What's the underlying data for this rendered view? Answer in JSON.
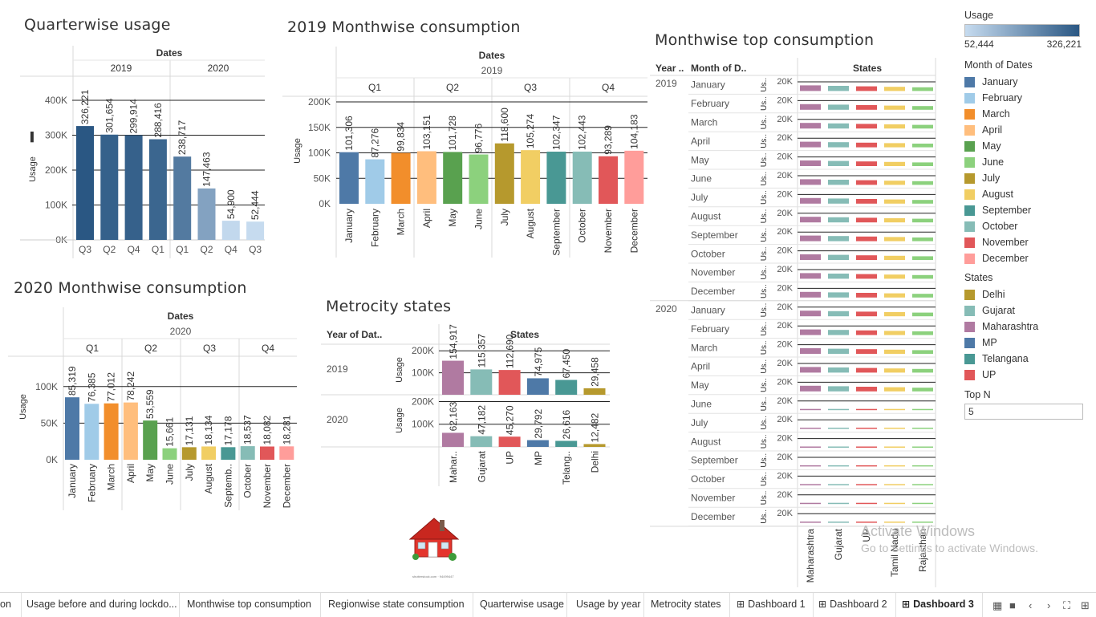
{
  "titles": {
    "quarter": "Quarterwise usage",
    "m2019": "2019 Monthwise consumption",
    "m2020": "2020 Monthwise consumption",
    "metro": "Metrocity states",
    "top": "Monthwise top consumption"
  },
  "colors": {
    "months": [
      "#4e79a7",
      "#a0cbe8",
      "#f28e2b",
      "#ffbe7d",
      "#59a14f",
      "#8cd17d",
      "#b6992d",
      "#f1ce63",
      "#499894",
      "#86bcb6",
      "#e15759",
      "#ff9d9a"
    ],
    "states": {
      "Delhi": "#b6992d",
      "Gujarat": "#86bcb6",
      "Maharashtra": "#b07aa1",
      "MP": "#4e79a7",
      "Telangana": "#499894",
      "UP": "#e15759",
      "Tamil Nadu": "#f1ce63",
      "Rajasthan": "#8cd17d"
    }
  },
  "legend": {
    "usage_title": "Usage",
    "usage_min": "52,444",
    "usage_max": "326,221",
    "month_title": "Month of Dates",
    "months": [
      "January",
      "February",
      "March",
      "April",
      "May",
      "June",
      "July",
      "August",
      "September",
      "October",
      "November",
      "December"
    ],
    "state_title": "States",
    "states": [
      "Delhi",
      "Gujarat",
      "Maharashtra",
      "MP",
      "Telangana",
      "UP"
    ],
    "topn_title": "Top N",
    "topn_value": "5"
  },
  "chart_data": [
    {
      "id": "quarterwise-usage",
      "type": "bar",
      "title": "Quarterwise usage",
      "header": "Dates",
      "ylabel": "Usage",
      "ylim": [
        0,
        400000
      ],
      "ticks": [
        "0K",
        "100K",
        "200K",
        "300K",
        "400K"
      ],
      "groups": [
        {
          "name": "2019",
          "categories": [
            "Q3",
            "Q2",
            "Q4",
            "Q1"
          ],
          "values": [
            326221,
            301654,
            299914,
            288416
          ],
          "labels": [
            "326,221",
            "301,654",
            "299,914",
            "288,416"
          ]
        },
        {
          "name": "2020",
          "categories": [
            "Q1",
            "Q2",
            "Q4",
            "Q3"
          ],
          "values": [
            238717,
            147463,
            54900,
            52444
          ],
          "labels": [
            "238,717",
            "147,463",
            "54,900",
            "52,444"
          ]
        }
      ]
    },
    {
      "id": "monthwise-2019",
      "type": "bar",
      "title": "2019 Monthwise consumption",
      "header": "Dates",
      "year": "2019",
      "ylabel": "Usage",
      "ylim": [
        0,
        200000
      ],
      "ticks": [
        "0K",
        "50K",
        "100K",
        "150K",
        "200K"
      ],
      "quarters": [
        "Q1",
        "Q2",
        "Q3",
        "Q4"
      ],
      "categories": [
        "January",
        "February",
        "March",
        "April",
        "May",
        "June",
        "July",
        "August",
        "September",
        "October",
        "November",
        "December"
      ],
      "values": [
        101306,
        87276,
        99834,
        103151,
        101728,
        96776,
        118600,
        105274,
        102347,
        102443,
        93289,
        104183
      ],
      "labels": [
        "101,306",
        "87,276",
        "99,834",
        "103,151",
        "101,728",
        "96,776",
        "118,600",
        "105,274",
        "102,347",
        "102,443",
        "93,289",
        "104,183"
      ]
    },
    {
      "id": "monthwise-2020",
      "type": "bar",
      "title": "2020 Monthwise consumption",
      "header": "Dates",
      "year": "2020",
      "ylabel": "Usage",
      "ylim": [
        0,
        130000
      ],
      "ticks": [
        "0K",
        "50K",
        "100K"
      ],
      "quarters": [
        "Q1",
        "Q2",
        "Q3",
        "Q4"
      ],
      "categories": [
        "January",
        "February",
        "March",
        "April",
        "May",
        "June",
        "July",
        "August",
        "Septemb..",
        "October",
        "November",
        "December"
      ],
      "values": [
        85319,
        76385,
        77012,
        78242,
        53559,
        15661,
        17131,
        18134,
        17178,
        18537,
        18082,
        18281
      ],
      "labels": [
        "85,319",
        "76,385",
        "77,012",
        "78,242",
        "53,559",
        "15,661",
        "17,131",
        "18,134",
        "17,178",
        "18,537",
        "18,082",
        "18,281"
      ]
    },
    {
      "id": "metrocity-states",
      "type": "bar",
      "title": "Metrocity states",
      "row_header": "Year of Dat..",
      "col_header": "States",
      "ylabel": "Usage",
      "ticks": [
        "100K",
        "200K"
      ],
      "rows": [
        {
          "year": "2019",
          "states": [
            "Maharashtra",
            "Gujarat",
            "UP",
            "MP",
            "Telangana",
            "Delhi"
          ],
          "values": [
            154917,
            115357,
            112690,
            74975,
            67450,
            29458
          ],
          "labels": [
            "154,917",
            "115,357",
            "112,690",
            "74,975",
            "67,450",
            "29,458"
          ]
        },
        {
          "year": "2020",
          "states": [
            "Maharashtra",
            "Gujarat",
            "UP",
            "MP",
            "Telangana",
            "Delhi"
          ],
          "values": [
            62163,
            47182,
            45270,
            29792,
            26616,
            12482
          ],
          "labels": [
            "62,163",
            "47,182",
            "45,270",
            "29,792",
            "26,616",
            "12,482"
          ]
        }
      ],
      "x_labels": [
        "Mahar..",
        "Gujarat",
        "UP",
        "MP",
        "Telang..",
        "Delhi"
      ]
    },
    {
      "id": "monthwise-top-consumption",
      "type": "bar",
      "title": "Monthwise top consumption",
      "col_headers": [
        "Year ..",
        "Month of D..",
        "States"
      ],
      "measure_label": "Us..",
      "tick": "20K",
      "states": [
        "Maharashtra",
        "Gujarat",
        "UP",
        "Tamil Nadu",
        "Rajasthan"
      ],
      "years": [
        "2019",
        "2020"
      ],
      "months": [
        "January",
        "February",
        "March",
        "April",
        "May",
        "June",
        "July",
        "August",
        "September",
        "October",
        "November",
        "December"
      ],
      "x_labels": [
        "Maharashtra",
        "Gujarat",
        "UP",
        "Tamil Nadu",
        "Rajasthan"
      ],
      "row_scale_2019": [
        1,
        1,
        1,
        1,
        1,
        1,
        1,
        1,
        1,
        1,
        1,
        1
      ],
      "row_scale_2020": [
        1,
        1,
        1,
        1,
        1,
        0.2,
        0.2,
        0.2,
        0.2,
        0.2,
        0.2,
        0.2
      ]
    }
  ],
  "tabs": [
    "on",
    "Usage before and during lockdo...",
    "Monthwise top consumption",
    "Regionwise state consumption",
    "Quarterwise usage",
    "Usage by year",
    "Metrocity states",
    "Dashboard 1",
    "Dashboard 2",
    "Dashboard 3"
  ],
  "watermark": {
    "line1": "Activate Windows",
    "line2": "Go to Settings to activate Windows."
  },
  "house_caption": "shutterstock.com · 94499447"
}
